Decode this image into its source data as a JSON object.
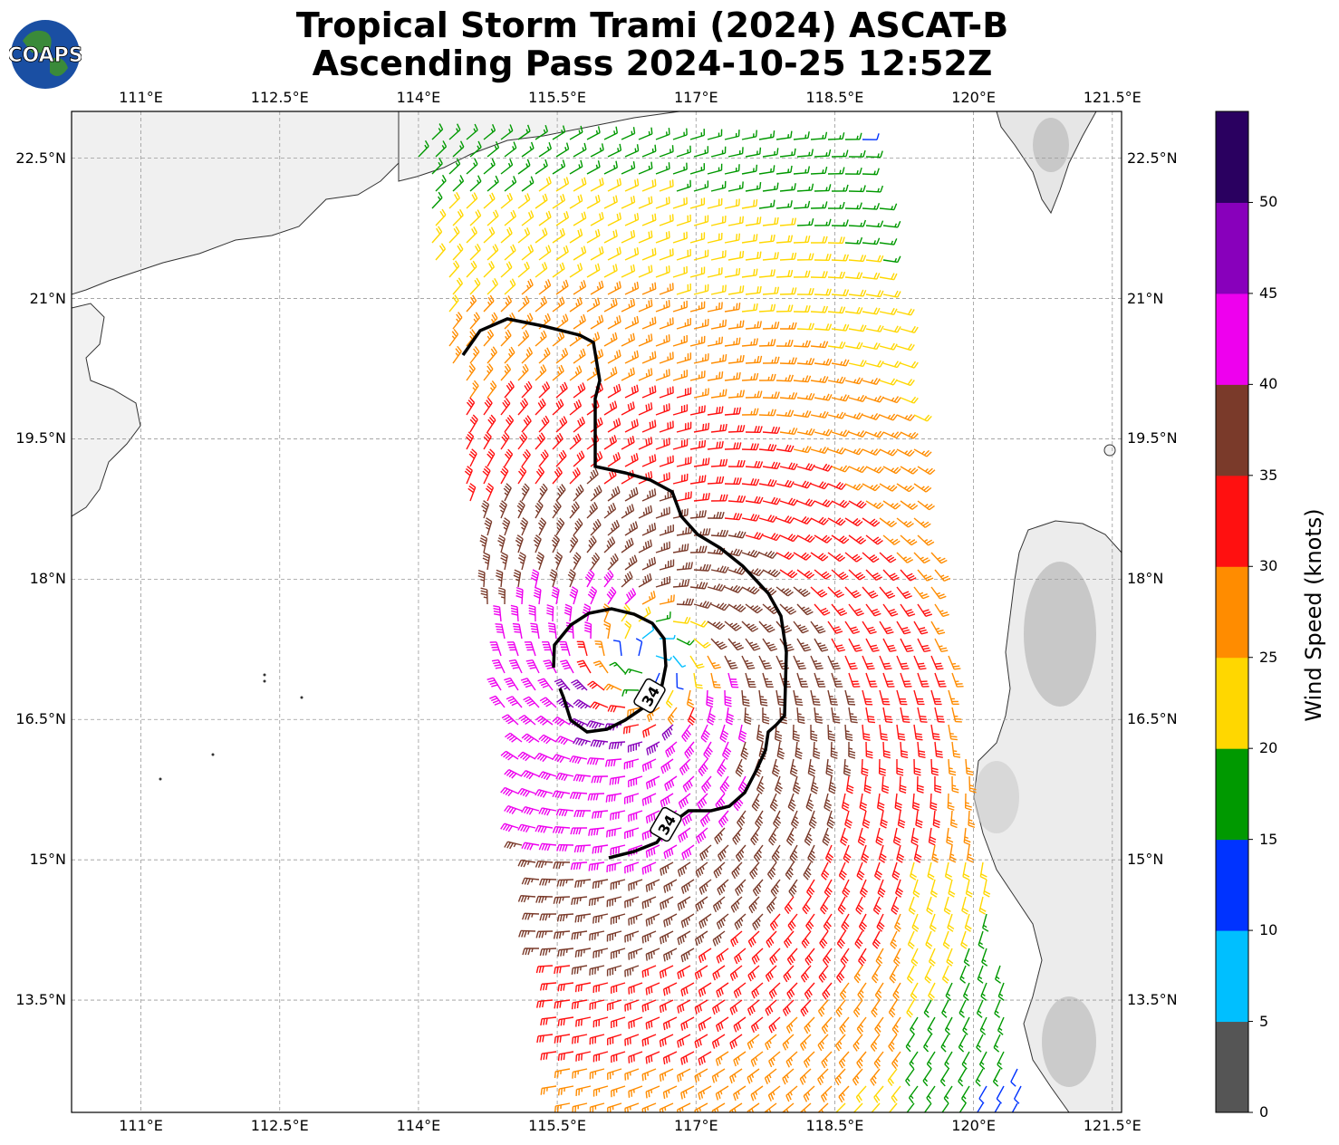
{
  "title_line1": "Tropical Storm Trami (2024) ASCAT-B",
  "title_line2": "Ascending Pass 2024-10-25 12:52Z",
  "logo_text": "COAPS",
  "lon_ticks": [
    "111°E",
    "112.5°E",
    "114°E",
    "115.5°E",
    "117°E",
    "118.5°E",
    "120°E",
    "121.5°E"
  ],
  "lat_ticks": [
    "22.5°N",
    "21°N",
    "19.5°N",
    "18°N",
    "16.5°N",
    "15°N",
    "13.5°N"
  ],
  "colorbar": {
    "label": "Wind Speed (knots)",
    "ticks": [
      "0",
      "5",
      "10",
      "15",
      "20",
      "25",
      "30",
      "35",
      "40",
      "45",
      "50"
    ],
    "colors": [
      "#555555",
      "#00bfff",
      "#0033ff",
      "#009900",
      "#ffd700",
      "#ff8c00",
      "#ff1010",
      "#7a3a2a",
      "#ee00ee",
      "#8800bb",
      "#2a0060"
    ]
  },
  "contour_labels": [
    "34",
    "34"
  ],
  "chart_data": {
    "type": "wind-barb-map",
    "lon_range": [
      110.25,
      121.6
    ],
    "lat_range": [
      12.3,
      23.0
    ],
    "storm_center": {
      "lon": 116.5,
      "lat": 17.1
    },
    "contour_kt": 34
  }
}
